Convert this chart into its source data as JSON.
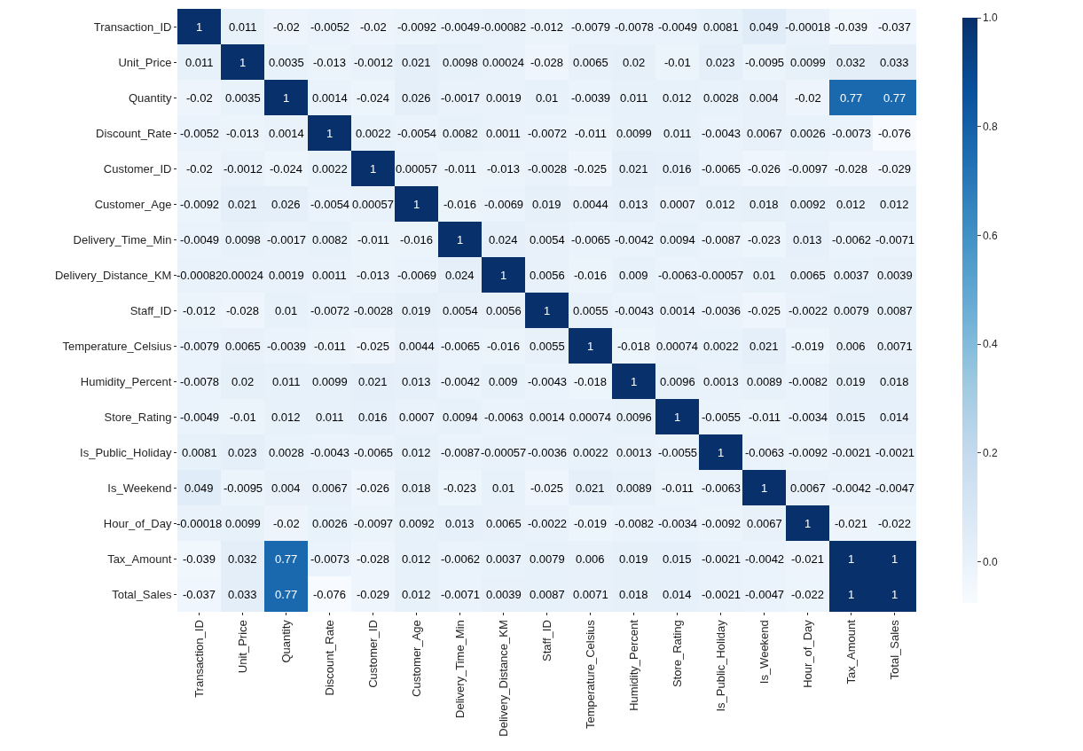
{
  "chart_data": {
    "type": "heatmap",
    "categories": [
      "Transaction_ID",
      "Unit_Price",
      "Quantity",
      "Discount_Rate",
      "Customer_ID",
      "Customer_Age",
      "Delivery_Time_Min",
      "Delivery_Distance_KM",
      "Staff_ID",
      "Temperature_Celsius",
      "Humidity_Percent",
      "Store_Rating",
      "Is_Public_Holiday",
      "Is_Weekend",
      "Hour_of_Day",
      "Tax_Amount",
      "Total_Sales"
    ],
    "y_categories": [
      "Transaction_ID",
      "Unit_Price",
      "Quantity",
      "Discount_Rate",
      "Customer_ID",
      "Customer_Age",
      "Delivery_Time_Min",
      "Delivery_Distance_KM",
      "Staff_ID",
      "Temperature_Celsius",
      "Humidity_Percent",
      "Store_Rating",
      "Is_Public_Holiday",
      "Is_Weekend",
      "Hour_of_Day",
      "Tax_Amount",
      "Total_Sales"
    ],
    "cells": [
      [
        1,
        0.011,
        -0.02,
        -0.0052,
        -0.02,
        -0.0092,
        -0.0049,
        -0.00082,
        -0.012,
        -0.0079,
        -0.0078,
        -0.0049,
        0.0081,
        0.049,
        -0.00018,
        -0.039,
        -0.037
      ],
      [
        0.011,
        1,
        0.0035,
        -0.013,
        -0.0012,
        0.021,
        0.0098,
        0.00024,
        -0.028,
        0.0065,
        0.02,
        -0.01,
        0.023,
        -0.0095,
        0.0099,
        0.032,
        0.033
      ],
      [
        -0.02,
        0.0035,
        1,
        0.0014,
        -0.024,
        0.026,
        -0.0017,
        0.0019,
        0.01,
        -0.0039,
        0.011,
        0.012,
        0.0028,
        0.004,
        -0.02,
        0.77,
        0.77
      ],
      [
        -0.0052,
        -0.013,
        0.0014,
        1,
        0.0022,
        -0.0054,
        0.0082,
        0.0011,
        -0.0072,
        -0.011,
        0.0099,
        0.011,
        -0.0043,
        0.0067,
        0.0026,
        -0.0073,
        -0.076
      ],
      [
        -0.02,
        -0.0012,
        -0.024,
        0.0022,
        1,
        0.00057,
        -0.011,
        -0.013,
        -0.0028,
        -0.025,
        0.021,
        0.016,
        -0.0065,
        -0.026,
        -0.0097,
        -0.028,
        -0.029
      ],
      [
        -0.0092,
        0.021,
        0.026,
        -0.0054,
        0.00057,
        1,
        -0.016,
        -0.0069,
        0.019,
        0.0044,
        0.013,
        0.0007,
        0.012,
        0.018,
        0.0092,
        0.012,
        0.012
      ],
      [
        -0.0049,
        0.0098,
        -0.0017,
        0.0082,
        -0.011,
        -0.016,
        1,
        0.024,
        0.0054,
        -0.0065,
        -0.0042,
        0.0094,
        -0.0087,
        -0.023,
        0.013,
        -0.0062,
        -0.0071
      ],
      [
        -0.00082,
        0.00024,
        0.0019,
        0.0011,
        -0.013,
        -0.0069,
        0.024,
        1,
        0.0056,
        -0.016,
        0.009,
        -0.0063,
        -0.00057,
        0.01,
        0.0065,
        0.0037,
        0.0039
      ],
      [
        -0.012,
        -0.028,
        0.01,
        -0.0072,
        -0.0028,
        0.019,
        0.0054,
        0.0056,
        1,
        0.0055,
        -0.0043,
        0.0014,
        -0.0036,
        -0.025,
        -0.0022,
        0.0079,
        0.0087
      ],
      [
        -0.0079,
        0.0065,
        -0.0039,
        -0.011,
        -0.025,
        0.0044,
        -0.0065,
        -0.016,
        0.0055,
        1,
        -0.018,
        0.00074,
        0.0022,
        0.021,
        -0.019,
        0.006,
        0.0071
      ],
      [
        -0.0078,
        0.02,
        0.011,
        0.0099,
        0.021,
        0.013,
        -0.0042,
        0.009,
        -0.0043,
        -0.018,
        1,
        0.0096,
        0.0013,
        0.0089,
        -0.0082,
        0.019,
        0.018
      ],
      [
        -0.0049,
        -0.01,
        0.012,
        0.011,
        0.016,
        0.0007,
        0.0094,
        -0.0063,
        0.0014,
        0.00074,
        0.0096,
        1,
        -0.0055,
        -0.011,
        -0.0034,
        0.015,
        0.014
      ],
      [
        0.0081,
        0.023,
        0.0028,
        -0.0043,
        -0.0065,
        0.012,
        -0.0087,
        -0.00057,
        -0.0036,
        0.0022,
        0.0013,
        -0.0055,
        1,
        -0.0063,
        -0.0092,
        -0.0021,
        -0.0021
      ],
      [
        0.049,
        -0.0095,
        0.004,
        0.0067,
        -0.026,
        0.018,
        -0.023,
        0.01,
        -0.025,
        0.021,
        0.0089,
        -0.011,
        -0.0063,
        1,
        0.0067,
        -0.0042,
        -0.0047
      ],
      [
        -0.00018,
        0.0099,
        -0.02,
        0.0026,
        -0.0097,
        0.0092,
        0.013,
        0.0065,
        -0.0022,
        -0.019,
        -0.0082,
        -0.0034,
        -0.0092,
        0.0067,
        1,
        -0.021,
        -0.022
      ],
      [
        -0.039,
        0.032,
        0.77,
        -0.0073,
        -0.028,
        0.012,
        -0.0062,
        0.0037,
        0.0079,
        0.006,
        0.019,
        0.015,
        -0.0021,
        -0.0042,
        -0.021,
        1,
        1
      ],
      [
        -0.037,
        0.033,
        0.77,
        -0.076,
        -0.029,
        0.012,
        -0.0071,
        0.0039,
        0.0087,
        0.0071,
        0.018,
        0.014,
        -0.0021,
        -0.0047,
        -0.022,
        1,
        1
      ]
    ],
    "data_labels": true,
    "clim": [
      -0.076,
      1
    ],
    "cticks": [
      {
        "value": 0,
        "label": "0.0"
      },
      {
        "value": 0.2,
        "label": "0.2"
      },
      {
        "value": 0.4,
        "label": "0.4"
      },
      {
        "value": 0.6,
        "label": "0.6"
      },
      {
        "value": 0.8,
        "label": "0.8"
      },
      {
        "value": 1,
        "label": "1.0"
      }
    ]
  }
}
